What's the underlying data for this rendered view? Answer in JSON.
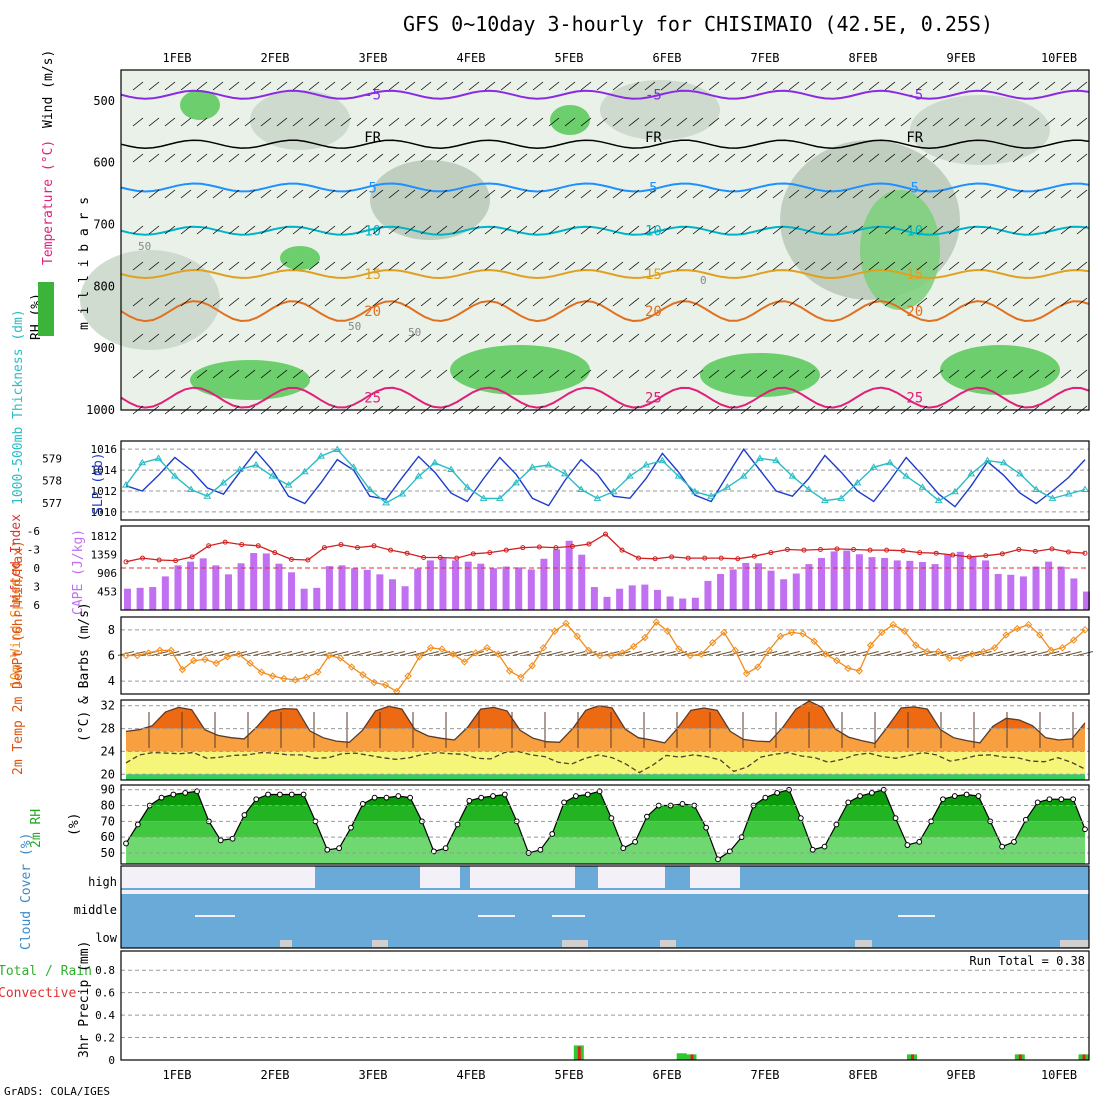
{
  "title": "GFS 0~10day 3-hourly for CHISIMAIO (42.5E, 0.25S)",
  "footer": "GrADS: COLA/IGES",
  "chart_data": [
    {
      "panel": "upper-air",
      "type": "contour",
      "ylabel": "m i l l i b a r s",
      "ylabels_left": [
        "RH (%)",
        "Temperature (°C)",
        "Wind (m/s)"
      ],
      "y_ticks": [
        500,
        600,
        700,
        800,
        900,
        1000
      ],
      "ylim": [
        450,
        1000
      ],
      "x_ticks": [
        "1FEB",
        "2FEB",
        "3FEB",
        "4FEB",
        "5FEB",
        "6FEB",
        "7FEB",
        "8FEB",
        "9FEB",
        "10FEB"
      ],
      "isotherms": [
        {
          "label": "-5",
          "pressure": 490,
          "color": "#8a2be2"
        },
        {
          "label": "FR",
          "pressure": 570,
          "color": "#000000"
        },
        {
          "label": "5",
          "pressure": 640,
          "color": "#1e90ff"
        },
        {
          "label": "10",
          "pressure": 710,
          "color": "#00b4c8"
        },
        {
          "label": "15",
          "pressure": 780,
          "color": "#e0a020"
        },
        {
          "label": "20",
          "pressure": 840,
          "color": "#e07020"
        },
        {
          "label": "25",
          "pressure": 980,
          "color": "#e0207a"
        }
      ],
      "rh_labels": [
        "50",
        "50",
        "50",
        "0"
      ]
    },
    {
      "panel": "slp-thickness",
      "type": "line",
      "ylabel_left": "1000-500mb Thickness (dm)",
      "ylabel_right": "SLP (mb)",
      "thickness_ticks": [
        577,
        578,
        579
      ],
      "slp_ticks": [
        1010,
        1012,
        1014,
        1016
      ],
      "series": [
        {
          "name": "SLP",
          "values": [
            1012.5,
            1012,
            1013.5,
            1015.2,
            1014,
            1012.3,
            1011.7,
            1013.8,
            1015.8,
            1014,
            1011.5,
            1010.8,
            1012.8,
            1015,
            1014,
            1011.5,
            1011.2,
            1013.3,
            1015.3,
            1013.8,
            1011.8,
            1011,
            1013.2,
            1015.2,
            1013.6,
            1011.3,
            1010.6,
            1013,
            1015,
            1013.6,
            1011.5,
            1011.3,
            1013.2,
            1015.6,
            1013.8,
            1011.6,
            1011,
            1013.5,
            1016,
            1014,
            1012,
            1011.5,
            1013.2,
            1015.4,
            1013.8,
            1012,
            1011,
            1013,
            1015.2,
            1013.5,
            1011.7,
            1010.5,
            1012.5,
            1014.8,
            1013.5,
            1011.8,
            1010.8,
            1012,
            1013.3,
            1015
          ]
        },
        {
          "name": "Thickness",
          "values": [
            577.8,
            578.8,
            579,
            578.2,
            577.6,
            577.3,
            577.9,
            578.5,
            578.7,
            578.2,
            577.8,
            578.4,
            579.1,
            579.4,
            578.6,
            577.6,
            577,
            577.4,
            578.2,
            578.8,
            578.5,
            577.7,
            577.2,
            577.2,
            577.9,
            578.6,
            578.7,
            578.3,
            577.6,
            577.2,
            577.5,
            578.2,
            578.7,
            578.9,
            578.2,
            577.5,
            577.3,
            577.7,
            578.2,
            579,
            578.9,
            578.2,
            577.6,
            577.1,
            577.2,
            577.9,
            578.6,
            578.8,
            578.2,
            577.7,
            577.1,
            577.5,
            578.3,
            578.9,
            578.8,
            578.3,
            577.6,
            577.2,
            577.4,
            577.6
          ]
        }
      ]
    },
    {
      "panel": "cape-li",
      "type": "bar",
      "ylabel_left": "Lifted Index",
      "ylabel_right": "CAPE (J/kg)",
      "li_ticks": [
        "-6",
        "-3",
        "0",
        "3",
        "6"
      ],
      "cape_ticks": [
        "453",
        "906",
        "1359",
        "1812"
      ],
      "cape": [
        520,
        540,
        560,
        820,
        1090,
        1180,
        1260,
        1090,
        870,
        1140,
        1390,
        1380,
        1130,
        920,
        520,
        540,
        1070,
        1090,
        1020,
        980,
        870,
        750,
        580,
        1010,
        1210,
        1260,
        1210,
        1180,
        1130,
        1020,
        1060,
        1040,
        990,
        1250,
        1480,
        1690,
        1350,
        560,
        320,
        520,
        600,
        620,
        490,
        330,
        280,
        300,
        710,
        880,
        990,
        1150,
        1140,
        960,
        750,
        890,
        1120,
        1270,
        1430,
        1450,
        1360,
        1290,
        1270,
        1210,
        1200,
        1170,
        1120,
        1350,
        1420,
        1300,
        1210,
        880,
        860,
        820,
        1060,
        1180,
        1060,
        770,
        450
      ],
      "li": [
        -1,
        -1.6,
        -1.3,
        -1.2,
        -1.8,
        -3.6,
        -4.2,
        -3.8,
        -3.6,
        -2.5,
        -1.4,
        -1.3,
        -3.3,
        -3.8,
        -3.3,
        -3.6,
        -2.9,
        -2.4,
        -1.7,
        -1.7,
        -1.6,
        -2.3,
        -2.5,
        -2.9,
        -3.3,
        -3.4,
        -3.3,
        -3.5,
        -3.9,
        -5.5,
        -2.9,
        -1.6,
        -1.5,
        -1.8,
        -1.6,
        -1.6,
        -1.6,
        -1.5,
        -1.9,
        -2.5,
        -3,
        -2.9,
        -3,
        -3.1,
        -3,
        -2.9,
        -2.9,
        -2.8,
        -2.5,
        -2.4,
        -2.1,
        -1.8,
        -2,
        -2.3,
        -3,
        -2.7,
        -3.1,
        -2.6,
        -2.4
      ]
    },
    {
      "panel": "wind10m",
      "type": "line",
      "ylabel_left": "10m Wind Speed",
      "ylabel_right": "& Barbs (m/s)",
      "y_ticks": [
        4,
        6,
        8
      ],
      "values": [
        6,
        6,
        6.2,
        6.4,
        6.4,
        4.9,
        5.6,
        5.7,
        5.4,
        5.9,
        6.1,
        5.4,
        4.7,
        4.4,
        4.2,
        4.1,
        4.3,
        4.7,
        6,
        5.8,
        5.1,
        4.5,
        3.9,
        3.7,
        3.2,
        4.4,
        5.9,
        6.6,
        6.5,
        6.1,
        5.5,
        6.2,
        6.6,
        6.1,
        4.8,
        4.3,
        5.2,
        6.6,
        7.9,
        8.5,
        7.5,
        6.4,
        6,
        6,
        6.2,
        6.7,
        7.4,
        8.6,
        7.9,
        6.5,
        6,
        6.1,
        7,
        7.8,
        6.4,
        4.6,
        5.1,
        6.4,
        7.5,
        7.8,
        7.7,
        7.1,
        6.1,
        5.6,
        5,
        4.8,
        6.8,
        7.8,
        8.4,
        7.9,
        6.8,
        6.3,
        6.3,
        5.8,
        5.8,
        6.1,
        6.3,
        6.6,
        7.6,
        8.1,
        8.4,
        7.6,
        6.4,
        6.6,
        7.2,
        8
      ]
    },
    {
      "panel": "temp2m",
      "type": "area",
      "ylabel_left": "2m Temp 2m DewPt (6hr Min/Max)",
      "ylabel_right": "(°C)",
      "y_ticks": [
        20,
        24,
        28,
        32
      ],
      "ylim": [
        19,
        33
      ],
      "temp": [
        27.5,
        27.8,
        28.5,
        30.9,
        31.7,
        31.3,
        27.8,
        26.8,
        26.4,
        26.2,
        28.4,
        31,
        31.5,
        31.4,
        27.6,
        26.4,
        25.8,
        25.6,
        27.7,
        31.1,
        31.9,
        31.4,
        27.8,
        26.7,
        26.3,
        26,
        28.2,
        31.4,
        31.7,
        31.1,
        27.7,
        26.3,
        25.7,
        25.6,
        28,
        31.2,
        32,
        31.6,
        27.9,
        26.4,
        26,
        25.5,
        28.1,
        31.2,
        31.6,
        31.2,
        27.5,
        26.1,
        25.8,
        25.7,
        28.2,
        31.4,
        32.8,
        31.7,
        27.9,
        26.5,
        25.9,
        25.4,
        28.4,
        31.6,
        31.8,
        31.4,
        27.8,
        26.4,
        25.9,
        25.5,
        28.4,
        29.8,
        29.5,
        28.5,
        26.4,
        26,
        26.2,
        29
      ],
      "dewpt": [
        22,
        23.4,
        23.8,
        23.7,
        23.6,
        23.8,
        22.8,
        23,
        23.3,
        23.4,
        23.8,
        23.7,
        23.4,
        23.4,
        22.8,
        22.9,
        23.6,
        23.7,
        23.3,
        22.9,
        22.6,
        22.9,
        23.5,
        23.8,
        23.6,
        23.5,
        22.8,
        22.7,
        23.8,
        24,
        23.4,
        23.1,
        22.1,
        21.8,
        22.8,
        23.4,
        22.9,
        21.8,
        20.3,
        21.6,
        23.3,
        23,
        23.4,
        23.1,
        22.5,
        20.5,
        21.3,
        23,
        23.5,
        23.8,
        23.2,
        22.9,
        22.1,
        22.6,
        23.4,
        23.7,
        23.1,
        22.8,
        23.3,
        23.8,
        23.4,
        22.3,
        22.7,
        23.3,
        23.4,
        23,
        22.9,
        22.3,
        22.2,
        22.9,
        22.1,
        20.9
      ]
    },
    {
      "panel": "rh2m",
      "type": "area",
      "ylabel_left": "2m RH",
      "ylabel_right": "(%)",
      "y_ticks": [
        50,
        60,
        70,
        80,
        90
      ],
      "ylim": [
        43,
        93
      ],
      "values": [
        56,
        68,
        80,
        85,
        87,
        88,
        89,
        70,
        58,
        59,
        74,
        84,
        87,
        87,
        87,
        87,
        70,
        52,
        53,
        66,
        81,
        85,
        85,
        86,
        85,
        70,
        51,
        53,
        68,
        83,
        85,
        86,
        87,
        70,
        50,
        52,
        62,
        82,
        86,
        87,
        89,
        72,
        53,
        57,
        73,
        80,
        80,
        81,
        80,
        66,
        46,
        51,
        60,
        80,
        85,
        88,
        90,
        72,
        52,
        54,
        68,
        82,
        86,
        88,
        90,
        72,
        55,
        57,
        70,
        84,
        86,
        87,
        86,
        70,
        54,
        57,
        71,
        82,
        84,
        84,
        84,
        65
      ]
    },
    {
      "panel": "cloud",
      "type": "area",
      "ylabel": "Cloud Cover (%)",
      "levels": [
        "high",
        "middle",
        "low"
      ]
    },
    {
      "panel": "precip",
      "type": "bar",
      "ylabel_left": "Total / Rain Convective",
      "ylabel_right": "3hr Precip (mm)",
      "y_ticks": [
        "0",
        "0.2",
        "0.4",
        "0.6",
        "0.8"
      ],
      "ylim": [
        0,
        0.9
      ],
      "run_total": "Run Total = 0.38",
      "bars": [
        {
          "time": 5.1,
          "total": 0.13,
          "conv": 0.12
        },
        {
          "time": 6.15,
          "total": 0.06,
          "conv": 0.0
        },
        {
          "time": 6.25,
          "total": 0.05,
          "conv": 0.05
        },
        {
          "time": 8.5,
          "total": 0.05,
          "conv": 0.05
        },
        {
          "time": 9.6,
          "total": 0.05,
          "conv": 0.05
        },
        {
          "time": 10.25,
          "total": 0.05,
          "conv": 0.05
        }
      ]
    }
  ]
}
